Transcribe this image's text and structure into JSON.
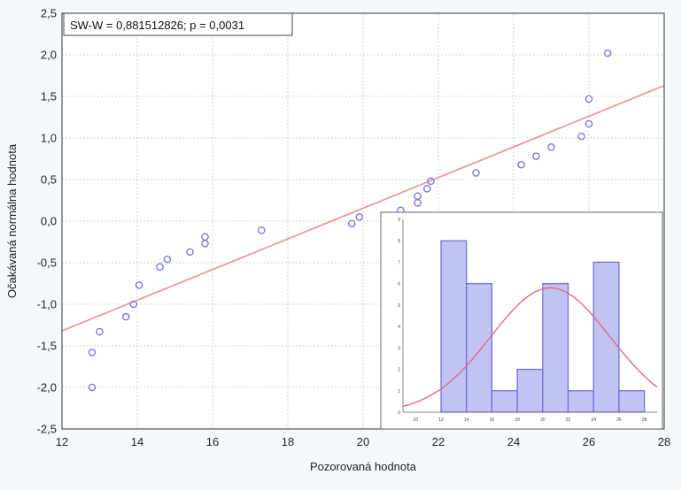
{
  "chart_data": [
    {
      "type": "scatter",
      "title": "",
      "xlabel": "Pozorovaná hodnota",
      "ylabel": "Očakávaná normálna hodnota",
      "annotation": "SW-W = 0,881512826; p = 0,0031",
      "xlim": [
        12,
        28
      ],
      "ylim": [
        -2.5,
        2.5
      ],
      "x_ticks": [
        "12",
        "14",
        "16",
        "18",
        "20",
        "22",
        "24",
        "26",
        "28"
      ],
      "y_ticks": [
        "-2,5",
        "-2,0",
        "-1,5",
        "-1,0",
        "-0,5",
        "0,0",
        "0,5",
        "1,0",
        "1,5",
        "2,0",
        "2,5"
      ],
      "grid": true,
      "colors": {
        "points": "#7b7bd8",
        "line": "#e89a9a",
        "frame": "#555555",
        "grid": "#c8c8c8"
      },
      "points": [
        {
          "x": 12.8,
          "y": -2.0
        },
        {
          "x": 12.8,
          "y": -1.58
        },
        {
          "x": 13.0,
          "y": -1.33
        },
        {
          "x": 13.7,
          "y": -1.15
        },
        {
          "x": 13.9,
          "y": -1.0
        },
        {
          "x": 14.05,
          "y": -0.77
        },
        {
          "x": 14.6,
          "y": -0.55
        },
        {
          "x": 14.8,
          "y": -0.46
        },
        {
          "x": 15.4,
          "y": -0.37
        },
        {
          "x": 15.8,
          "y": -0.27
        },
        {
          "x": 15.8,
          "y": -0.19
        },
        {
          "x": 17.3,
          "y": -0.11
        },
        {
          "x": 19.7,
          "y": -0.03
        },
        {
          "x": 19.9,
          "y": 0.05
        },
        {
          "x": 21.0,
          "y": 0.13
        },
        {
          "x": 21.45,
          "y": 0.22
        },
        {
          "x": 21.45,
          "y": 0.3
        },
        {
          "x": 21.7,
          "y": 0.39
        },
        {
          "x": 21.8,
          "y": 0.48
        },
        {
          "x": 23.0,
          "y": 0.58
        },
        {
          "x": 24.2,
          "y": 0.68
        },
        {
          "x": 24.6,
          "y": 0.78
        },
        {
          "x": 25.0,
          "y": 0.89
        },
        {
          "x": 25.8,
          "y": 1.02
        },
        {
          "x": 26.0,
          "y": 1.17
        },
        {
          "x": 26.0,
          "y": 1.47
        },
        {
          "x": 26.5,
          "y": 2.02
        }
      ],
      "fit_line": [
        {
          "x": 12,
          "y": -1.32
        },
        {
          "x": 28,
          "y": 1.63
        }
      ]
    },
    {
      "type": "bar",
      "title": "",
      "tick_labels": [
        "10",
        "12",
        "14",
        "16",
        "18",
        "20",
        "22",
        "24",
        "26",
        "28"
      ],
      "y_ticks": [
        "0",
        "1",
        "2",
        "3",
        "4",
        "5",
        "6",
        "7",
        "8",
        "9"
      ],
      "bin_edges": [
        12,
        14,
        16,
        18,
        20,
        22,
        24,
        26,
        28
      ],
      "values": [
        8,
        6,
        1,
        2,
        6,
        1,
        7,
        1
      ],
      "xlim": [
        9,
        29
      ],
      "ylim": [
        0,
        9
      ],
      "normal_curve": {
        "mean": 20.6,
        "sd": 4.7,
        "peak": 5.8
      },
      "colors": {
        "bar_fill": "#c3c3f3",
        "bar_stroke": "#6a6ad0",
        "curve": "#e06a8a"
      }
    }
  ]
}
